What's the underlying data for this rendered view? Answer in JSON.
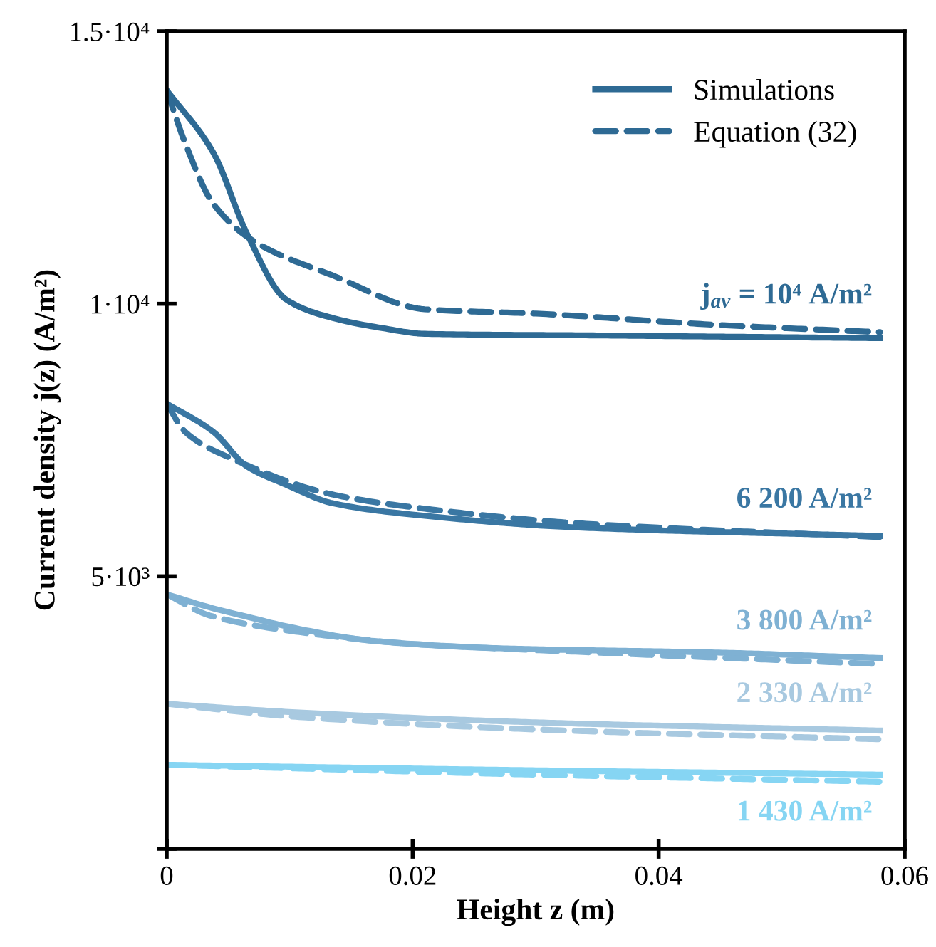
{
  "chart_data": {
    "type": "line",
    "xlabel": "Height z (m)",
    "ylabel": "Current density j(z) (A/m²)",
    "xlim": [
      0,
      0.06
    ],
    "xticks": [
      0,
      0.02,
      0.04,
      0.06
    ],
    "ylim": [
      0,
      15000
    ],
    "yticks": [
      {
        "value": 0,
        "label": null
      },
      {
        "value": 5000,
        "label": "5·10³"
      },
      {
        "value": 10000,
        "label": "1·10⁴"
      },
      {
        "value": 15000,
        "label": "1.5·10⁴"
      }
    ],
    "grid": false,
    "legend": "top right",
    "marker": "none",
    "series": [
      {
        "name": "Simulations",
        "color": "#2e6a94",
        "line_style": "solid",
        "x": [
          0,
          0.0038,
          0.0065,
          0.0097,
          0.0135,
          0.0174,
          0.021,
          0.035,
          0.058
        ],
        "values": [
          13920,
          12770,
          11300,
          10080,
          9740,
          9560,
          9450,
          9420,
          9370
        ]
      },
      {
        "name": "Equation (32)",
        "color": "#2e6a94",
        "line_style": "dashed",
        "x": [
          0,
          0.0015,
          0.0038,
          0.0073,
          0.0135,
          0.021,
          0.03,
          0.045,
          0.058
        ],
        "values": [
          13920,
          12950,
          11830,
          11120,
          10520,
          9900,
          9820,
          9610,
          9480
        ]
      },
      {
        "color": "#3a77a3",
        "line_style": "solid",
        "x": [
          0,
          0.0038,
          0.0065,
          0.0097,
          0.0135,
          0.021,
          0.033,
          0.058
        ],
        "values": [
          8170,
          7650,
          7020,
          6680,
          6340,
          6110,
          5900,
          5740
        ]
      },
      {
        "color": "#3a77a3",
        "line_style": "dashed",
        "x": [
          0,
          0.0015,
          0.0056,
          0.0135,
          0.021,
          0.033,
          0.058
        ],
        "values": [
          8170,
          7650,
          7130,
          6500,
          6240,
          5980,
          5720
        ]
      },
      {
        "color": "#7fb1d3",
        "line_style": "solid",
        "x": [
          0,
          0.0038,
          0.0065,
          0.01,
          0.017,
          0.027,
          0.045,
          0.058
        ],
        "values": [
          4670,
          4410,
          4260,
          4070,
          3810,
          3680,
          3600,
          3500
        ]
      },
      {
        "color": "#7fb1d3",
        "line_style": "dashed",
        "x": [
          0,
          0.0035,
          0.01,
          0.02,
          0.035,
          0.058
        ],
        "values": [
          4670,
          4280,
          4000,
          3760,
          3600,
          3390
        ]
      },
      {
        "color": "#a8c9e0",
        "line_style": "solid",
        "x": [
          0,
          0.01,
          0.03,
          0.058
        ],
        "values": [
          2660,
          2510,
          2320,
          2170
        ]
      },
      {
        "color": "#a8c9e0",
        "line_style": "dashed",
        "x": [
          0,
          0.01,
          0.03,
          0.058
        ],
        "values": [
          2660,
          2430,
          2190,
          2010
        ]
      },
      {
        "color": "#86d5f3",
        "line_style": "solid",
        "x": [
          0,
          0.03,
          0.058
        ],
        "values": [
          1540,
          1440,
          1360
        ]
      },
      {
        "color": "#86d5f3",
        "line_style": "dashed",
        "x": [
          0,
          0.03,
          0.058
        ],
        "values": [
          1540,
          1360,
          1230
        ]
      }
    ],
    "annotations": [
      "j$_{av}$ = 10⁴ A/m²",
      "6 200 A/m²",
      "3 800 A/m²",
      "2 330 A/m²",
      "1 430 A/m²"
    ]
  }
}
